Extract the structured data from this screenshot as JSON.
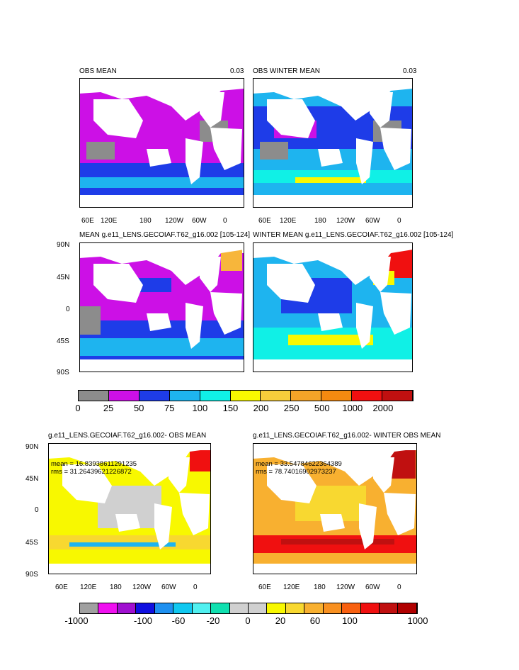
{
  "colors": {
    "land": "#ffffff",
    "grey": "#8c8c8c",
    "magenta": "#cc10e6",
    "blue": "#1e3ce8",
    "cyan": "#1eb4ef",
    "aqua": "#10f0e6",
    "yellow": "#f8f800",
    "orange": "#f7b63b",
    "darkorange": "#f48a10",
    "red": "#f01010",
    "darkred": "#c01010"
  },
  "top": {
    "panels": [
      {
        "title": "OBS MEAN",
        "value": "0.03"
      },
      {
        "title": "OBS WINTER MEAN",
        "value": "0.03"
      },
      {
        "title": "MEAN g.e11_LENS.GECOIAF.T62_g16.002 [105-124]",
        "value": ""
      },
      {
        "title": "WINTER MEAN g.e11_LENS.GECOIAF.T62_g16.002 [105-124]",
        "value": ""
      }
    ],
    "lon_labels": [
      "60E",
      "120E",
      "180",
      "120W",
      "60W",
      "0"
    ],
    "lat_labels": [
      "90N",
      "45N",
      "0",
      "45S",
      "90S"
    ],
    "colorbar": {
      "colors": [
        "#8c8c8c",
        "#cc10e6",
        "#1e3ce8",
        "#1eb4ef",
        "#10f0e6",
        "#f8f800",
        "#f7cc3b",
        "#f4a428",
        "#f48a10",
        "#f01010",
        "#c01010"
      ],
      "labels": [
        "0",
        "25",
        "50",
        "75",
        "100",
        "150",
        "200",
        "250",
        "500",
        "1000",
        "2000"
      ]
    }
  },
  "bottom": {
    "panels": [
      {
        "title": "g.e11_LENS.GECOIAF.T62_g16.002- OBS MEAN",
        "mean": "mean = 16.83938611291235",
        "rms": "rms = 31.26439621226872"
      },
      {
        "title": "g.e11_LENS.GECOIAF.T62_g16.002- WINTER OBS MEAN",
        "mean": "mean = 33.54784622364389",
        "rms": "rms = 78.74016902973237"
      }
    ],
    "lon_labels": [
      "60E",
      "120E",
      "180",
      "120W",
      "60W",
      "0"
    ],
    "lat_labels": [
      "90N",
      "45N",
      "0",
      "45S",
      "90S"
    ],
    "colorbar": {
      "colors": [
        "#a0a0a0",
        "#f010f0",
        "#a010d0",
        "#1010e0",
        "#1e90f0",
        "#10c8f0",
        "#50f0f0",
        "#10e0b0",
        "#d0d0d0",
        "#d0d0d0",
        "#f8f800",
        "#f8d830",
        "#f8b030",
        "#f89020",
        "#f86010",
        "#f01010",
        "#c01010",
        "#b00000"
      ],
      "labels": [
        "-1000",
        "-100",
        "-60",
        "-20",
        "0",
        "20",
        "60",
        "100",
        "1000"
      ]
    }
  }
}
